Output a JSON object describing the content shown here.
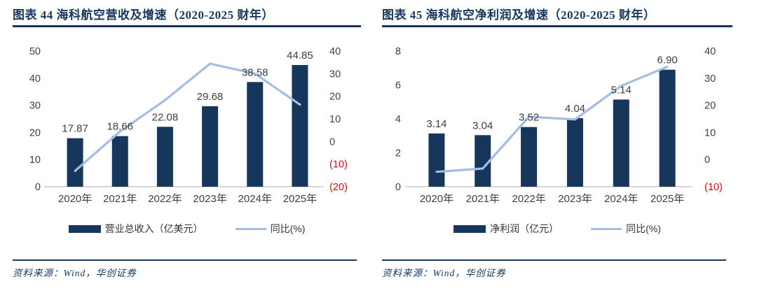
{
  "colors": {
    "navy": "#17375e",
    "bar_fill": "#16365c",
    "line_stroke": "#a3bee2",
    "axis_line": "#c9c9c9",
    "tick_text": "#404040",
    "negative_tick": "#ff0000"
  },
  "figures": [
    {
      "title": "图表 44  海科航空营收及增速（2020-2025 财年）",
      "legend": [
        {
          "type": "bar",
          "label": "营业总收入（亿美元）"
        },
        {
          "type": "line",
          "label": "同比(%)"
        }
      ],
      "source": "资料来源：Wind，华创证券"
    },
    {
      "title": "图表 45  海科航空净利润及增速（2020-2025 财年）",
      "legend": [
        {
          "type": "bar",
          "label": "净利润（亿元）"
        },
        {
          "type": "line",
          "label": "同比(%)"
        }
      ],
      "source": "资料来源：Wind，华创证券"
    }
  ],
  "chart_data": [
    {
      "type": "bar+line",
      "title": "海科航空营收及增速（2020-2025 财年）",
      "categories": [
        "2020年",
        "2021年",
        "2022年",
        "2023年",
        "2024年",
        "2025年"
      ],
      "series": [
        {
          "name": "营业总收入（亿美元）",
          "type": "bar",
          "axis": "left",
          "values": [
            17.87,
            18.66,
            22.08,
            29.68,
            38.58,
            44.85
          ],
          "labels": [
            "17.87",
            "18.66",
            "22.08",
            "29.68",
            "38.58",
            "44.85"
          ]
        },
        {
          "name": "同比(%)",
          "type": "line",
          "axis": "right",
          "values": [
            -13.0,
            4.4,
            18.3,
            34.4,
            30.0,
            16.3
          ]
        }
      ],
      "left_axis": {
        "min": 0,
        "max": 50,
        "ticks": [
          "0",
          "10",
          "20",
          "30",
          "40",
          "50"
        ]
      },
      "right_axis": {
        "min": -20,
        "max": 40,
        "ticks": [
          "(20)",
          "(10)",
          "0",
          "10",
          "20",
          "30",
          "40"
        ]
      },
      "grid": false,
      "legend_position": "bottom"
    },
    {
      "type": "bar+line",
      "title": "海科航空净利润及增速（2020-2025 财年）",
      "categories": [
        "2020年",
        "2021年",
        "2022年",
        "2023年",
        "2024年",
        "2025年"
      ],
      "series": [
        {
          "name": "净利润（亿元）",
          "type": "bar",
          "axis": "left",
          "values": [
            3.14,
            3.04,
            3.52,
            4.04,
            5.14,
            6.9
          ],
          "labels": [
            "3.14",
            "3.04",
            "3.52",
            "4.04",
            "5.14",
            "6.90"
          ]
        },
        {
          "name": "同比(%)",
          "type": "line",
          "axis": "right",
          "values": [
            -4.5,
            -3.3,
            15.8,
            14.8,
            27.2,
            34.2
          ]
        }
      ],
      "left_axis": {
        "min": 0,
        "max": 8,
        "ticks": [
          "0",
          "2",
          "4",
          "6",
          "8"
        ]
      },
      "right_axis": {
        "min": -10,
        "max": 40,
        "ticks": [
          "(10)",
          "0",
          "10",
          "20",
          "30",
          "40"
        ]
      },
      "grid": false,
      "legend_position": "bottom"
    }
  ]
}
